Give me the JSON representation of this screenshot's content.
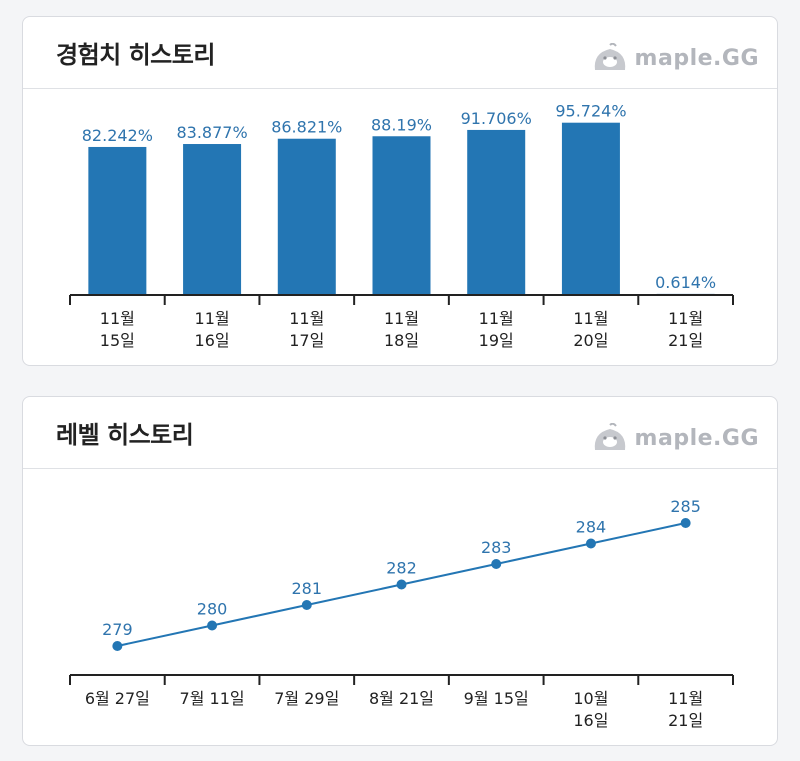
{
  "brand": {
    "text": "maple.GG",
    "icon": "slime-icon"
  },
  "colors": {
    "bar": "#2376b4",
    "line": "#2376b4",
    "label": "#2f74ad",
    "axis": "#222222"
  },
  "exp_card": {
    "title": "경험치 히스토리"
  },
  "level_card": {
    "title": "레벨 히스토리"
  },
  "chart_data": [
    {
      "type": "bar",
      "title": "경험치 히스토리",
      "categories": [
        "11월\n15일",
        "11월\n16일",
        "11월\n17일",
        "11월\n18일",
        "11월\n19일",
        "11월\n20일",
        "11월\n21일"
      ],
      "values": [
        82.242,
        83.877,
        86.821,
        88.19,
        91.706,
        95.724,
        0.614
      ],
      "data_labels": [
        "82.242%",
        "83.877%",
        "86.821%",
        "88.19%",
        "91.706%",
        "95.724%",
        "0.614%"
      ],
      "ylim": [
        0,
        100
      ],
      "grid": false,
      "legend": "none"
    },
    {
      "type": "line",
      "title": "레벨 히스토리",
      "categories": [
        "6월 27일",
        "7월 11일",
        "7월 29일",
        "8월 21일",
        "9월 15일",
        "10월\n16일",
        "11월\n21일"
      ],
      "values": [
        279,
        280,
        281,
        282,
        283,
        284,
        285
      ],
      "data_labels": [
        "279",
        "280",
        "281",
        "282",
        "283",
        "284",
        "285"
      ],
      "grid": false,
      "legend": "none"
    }
  ]
}
